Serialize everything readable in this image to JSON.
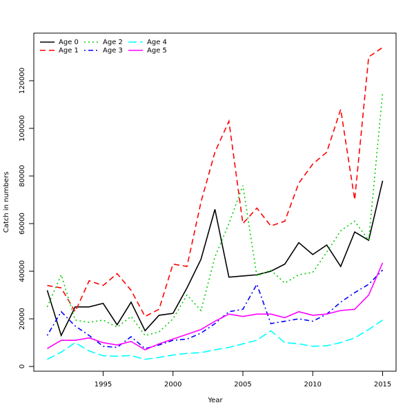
{
  "chart_data": {
    "type": "line",
    "x_label": "Year",
    "y_label": "Catch in numbers",
    "x": [
      1991,
      1992,
      1993,
      1994,
      1995,
      1996,
      1997,
      1998,
      1999,
      2000,
      2001,
      2002,
      2003,
      2004,
      2005,
      2006,
      2007,
      2008,
      2009,
      2010,
      2011,
      2012,
      2013,
      2014,
      2015
    ],
    "series": [
      {
        "name": "Age 0",
        "color": "#000000",
        "dash": "none",
        "values": [
          32000,
          13000,
          25000,
          25000,
          26500,
          17500,
          27000,
          15000,
          21500,
          22300,
          33000,
          45000,
          66000,
          37500,
          38000,
          38500,
          40000,
          43000,
          52000,
          47000,
          51000,
          42000,
          56500,
          53000,
          78000
        ]
      },
      {
        "name": "Age 1",
        "color": "#ff0000",
        "dash": "8 5",
        "values": [
          34000,
          33000,
          23000,
          36000,
          34000,
          39000,
          32000,
          21000,
          24000,
          43000,
          42000,
          69000,
          90000,
          103000,
          60000,
          66500,
          59000,
          61000,
          77000,
          85000,
          90000,
          108000,
          70000,
          130000,
          134000
        ]
      },
      {
        "name": "Age 2",
        "color": "#00cd00",
        "dash": "2 4",
        "values": [
          25000,
          38500,
          19500,
          18500,
          19500,
          16500,
          21000,
          13000,
          14500,
          20000,
          30000,
          23500,
          46000,
          60000,
          76000,
          38000,
          40500,
          35000,
          38500,
          39500,
          48000,
          57000,
          61000,
          53000,
          115000
        ]
      },
      {
        "name": "Age 3",
        "color": "#0000ff",
        "dash": "2 4 7 4",
        "values": [
          13000,
          23000,
          17000,
          13000,
          8500,
          8000,
          12500,
          7500,
          9000,
          11000,
          11500,
          14000,
          18000,
          23000,
          24000,
          34500,
          18000,
          19000,
          20000,
          19000,
          22000,
          27000,
          31000,
          34500,
          40500
        ]
      },
      {
        "name": "Age 4",
        "color": "#00ffff",
        "dash": "12 5",
        "values": [
          3000,
          6000,
          10000,
          6500,
          4500,
          4300,
          4600,
          3000,
          3800,
          4800,
          5500,
          5800,
          7000,
          8000,
          9500,
          11000,
          15000,
          10000,
          9500,
          8500,
          8700,
          10000,
          12000,
          15500,
          19500
        ]
      },
      {
        "name": "Age 5",
        "color": "#ff00ff",
        "dash": "none",
        "values": [
          7500,
          11000,
          11000,
          12000,
          10000,
          9000,
          10500,
          7000,
          9500,
          11500,
          13500,
          15500,
          19000,
          22000,
          21000,
          22000,
          22000,
          20500,
          23000,
          21500,
          22000,
          23500,
          24000,
          30000,
          43500
        ]
      }
    ],
    "xlim": [
      1990.04,
      2015.96
    ],
    "ylim": [
      -2000,
      140000
    ],
    "xticks": [
      1995,
      2000,
      2005,
      2010,
      2015
    ],
    "yticks": [
      0,
      20000,
      40000,
      60000,
      80000,
      100000,
      120000
    ],
    "legend": "top-left"
  }
}
